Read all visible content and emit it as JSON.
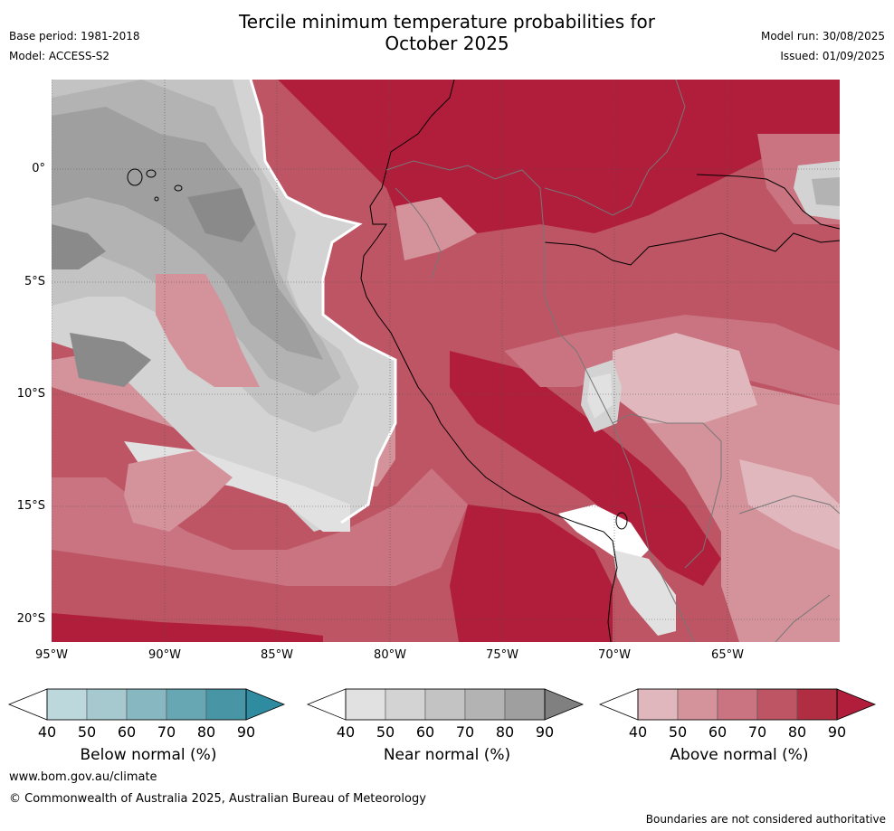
{
  "title_line1": "Tercile minimum temperature probabilities for",
  "title_line2": "October 2025",
  "header": {
    "base_period": "Base period: 1981-2018",
    "model": "Model: ACCESS-S2",
    "model_run": "Model run: 30/08/2025",
    "issued": "Issued: 01/09/2025"
  },
  "map": {
    "lat_labels": [
      "0°",
      "5°S",
      "10°S",
      "15°S",
      "20°S"
    ],
    "lon_labels": [
      "95°W",
      "90°W",
      "85°W",
      "80°W",
      "75°W",
      "70°W",
      "65°W"
    ]
  },
  "colorbars": [
    {
      "title": "Below normal (%)",
      "ticks": [
        "40",
        "50",
        "60",
        "70",
        "80",
        "90"
      ],
      "colors": [
        "#ffffff",
        "#bdd8dc",
        "#a5c9ce",
        "#87b8c1",
        "#67a7b3",
        "#4896a5",
        "#2f8ba0"
      ]
    },
    {
      "title": "Near normal (%)",
      "ticks": [
        "40",
        "50",
        "60",
        "70",
        "80",
        "90"
      ],
      "colors": [
        "#ffffff",
        "#e1e1e1",
        "#d3d3d3",
        "#c3c3c3",
        "#b3b3b3",
        "#9f9f9f",
        "#808080"
      ]
    },
    {
      "title": "Above normal (%)",
      "ticks": [
        "40",
        "50",
        "60",
        "70",
        "80",
        "90"
      ],
      "colors": [
        "#ffffff",
        "#e0b7bd",
        "#d4929b",
        "#c97480",
        "#bd5564",
        "#b12d42",
        "#b01e3b"
      ]
    }
  ],
  "footer": {
    "url": "www.bom.gov.au/climate",
    "copyright": "© Commonwealth of Australia 2025, Australian Bureau of Meteorology",
    "disclaimer": "Boundaries are not considered authoritative"
  }
}
